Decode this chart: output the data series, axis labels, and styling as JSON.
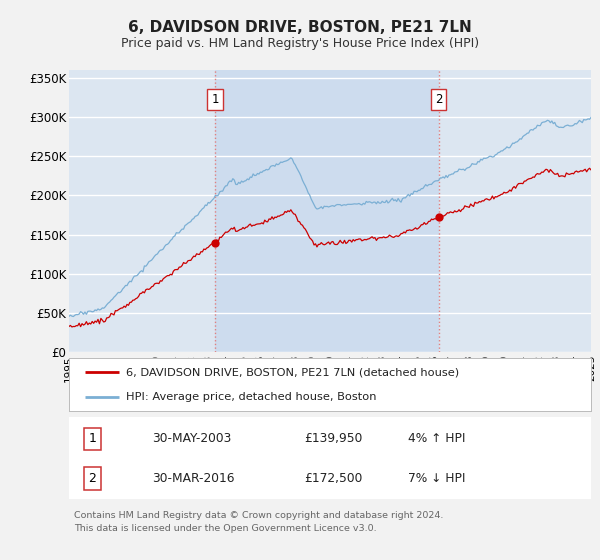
{
  "title": "6, DAVIDSON DRIVE, BOSTON, PE21 7LN",
  "subtitle": "Price paid vs. HM Land Registry's House Price Index (HPI)",
  "title_fontsize": 11,
  "subtitle_fontsize": 9,
  "ylabel_ticks": [
    "£0",
    "£50K",
    "£100K",
    "£150K",
    "£200K",
    "£250K",
    "£300K",
    "£350K"
  ],
  "ytick_values": [
    0,
    50000,
    100000,
    150000,
    200000,
    250000,
    300000,
    350000
  ],
  "ylim": [
    0,
    360000
  ],
  "xlim_start": 1995.3,
  "xlim_end": 2025.0,
  "background_color": "#dce6f1",
  "shade_color": "#c8d8ee",
  "line1_color": "#cc0000",
  "line2_color": "#7bafd4",
  "vline_color": "#e08080",
  "grid_color": "#ffffff",
  "sale1_year": 2003.41,
  "sale1_price": 139950,
  "sale2_year": 2016.24,
  "sale2_price": 172500,
  "footer_text": "Contains HM Land Registry data © Crown copyright and database right 2024.\nThis data is licensed under the Open Government Licence v3.0.",
  "legend1_text": "6, DAVIDSON DRIVE, BOSTON, PE21 7LN (detached house)",
  "legend2_text": "HPI: Average price, detached house, Boston"
}
